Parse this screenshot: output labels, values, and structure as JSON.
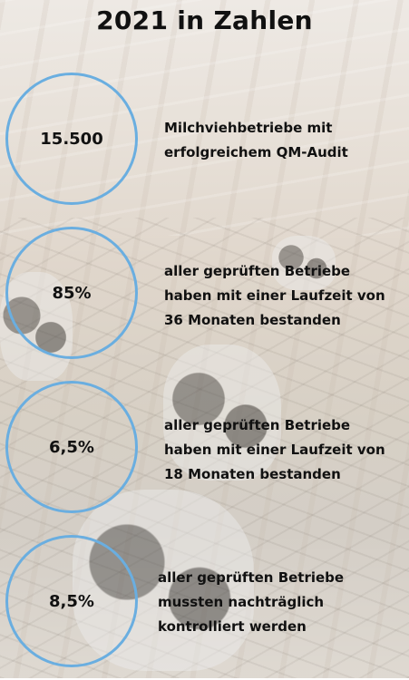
{
  "title": "2021 in Zahlen",
  "stats": [
    {
      "value": "15.500",
      "lines": [
        "Milchviehbetriebe mit",
        "erfolgreichem QM-Audit"
      ]
    },
    {
      "value": "85%",
      "lines": [
        "aller geprüften Betriebe",
        "haben mit einer Laufzeit von",
        "36 Monaten bestanden"
      ]
    },
    {
      "value": "6,5%",
      "lines": [
        "aller geprüften Betriebe",
        "haben mit einer Laufzeit von",
        "18 Monaten bestanden"
      ]
    },
    {
      "value": "8,5%",
      "lines": [
        "aller geprüften Betriebe",
        "mussten nachträglich",
        "kontrolliert werden"
      ]
    }
  ],
  "colors": {
    "circle": "#6aaee0"
  }
}
